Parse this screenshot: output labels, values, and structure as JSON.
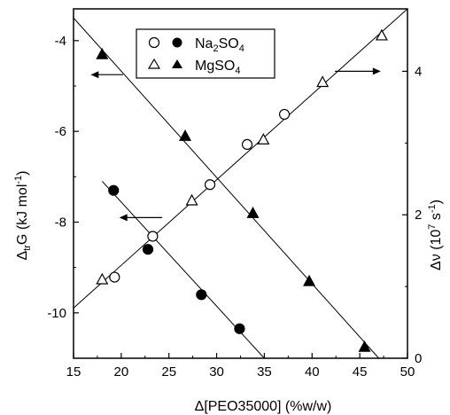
{
  "chart_data": {
    "type": "scatter",
    "xlabel": {
      "prefix": "Δ[PEO35000] (%w/w)"
    },
    "ylabel_left": {
      "main": "Δ",
      "sub": "tr",
      "rest": "G (kJ mol",
      "sup": "-1",
      "end": ")"
    },
    "ylabel_right": {
      "main": "Δν (10",
      "sup": "7",
      "mid": " s",
      "sup2": "-1",
      "end": ")"
    },
    "x_axis": {
      "min": 15,
      "max": 50,
      "ticks": [
        15,
        20,
        25,
        30,
        35,
        40,
        45,
        50
      ],
      "tick_labels": [
        "15",
        "20",
        "25",
        "30",
        "35",
        "40",
        "45",
        "50"
      ]
    },
    "y_left": {
      "min": -11,
      "max": -3.3,
      "ticks": [
        -10,
        -8,
        -6,
        -4
      ],
      "tick_labels": [
        "-10",
        "-8",
        "-6",
        "-4"
      ]
    },
    "y_right": {
      "min": 0,
      "max": 4.87,
      "ticks": [
        0,
        2,
        4
      ],
      "tick_labels": [
        "0",
        "2",
        "4"
      ]
    },
    "legend": {
      "placement": "top-left",
      "rows": [
        {
          "label_main": "Na",
          "label_sub": "2",
          "label_rest": "SO",
          "label_sub2": "4",
          "open_marker": "circle",
          "filled_marker": "circle"
        },
        {
          "label_main": "MgSO",
          "label_sub": "4",
          "label_rest": "",
          "label_sub2": "",
          "open_marker": "triangle",
          "filled_marker": "triangle"
        }
      ]
    },
    "series": [
      {
        "name": "Na2SO4",
        "marker": "circle-open",
        "axis": "right",
        "x": [
          19.3,
          23.3,
          29.3,
          33.2,
          37.1
        ],
        "y": [
          1.13,
          1.7,
          2.42,
          2.98,
          3.4
        ]
      },
      {
        "name": "MgSO4",
        "marker": "triangle-open",
        "axis": "right",
        "x": [
          18.0,
          27.4,
          34.9,
          41.1,
          47.3
        ],
        "y": [
          1.1,
          2.2,
          3.05,
          3.85,
          4.5
        ]
      },
      {
        "name": "Na2SO4",
        "marker": "circle-filled",
        "axis": "left",
        "x": [
          19.2,
          22.8,
          28.4,
          32.4
        ],
        "y": [
          -7.3,
          -8.6,
          -9.6,
          -10.35
        ]
      },
      {
        "name": "MgSO4",
        "marker": "triangle-filled",
        "axis": "left",
        "x": [
          18.0,
          26.7,
          33.8,
          39.7,
          45.5
        ],
        "y": [
          -4.3,
          -6.1,
          -7.8,
          -9.3,
          -10.75
        ]
      }
    ],
    "fit_lines": [
      {
        "axis": "right",
        "x": [
          15,
          50
        ],
        "y": [
          0.7,
          4.87
        ]
      },
      {
        "axis": "left",
        "x": [
          18,
          35
        ],
        "y": [
          -7.1,
          -11.0
        ]
      },
      {
        "axis": "left",
        "x": [
          15,
          47
        ],
        "y": [
          -3.5,
          -11.0
        ]
      }
    ],
    "arrows": [
      {
        "direction": "left",
        "axis": "left",
        "x_from": 20.2,
        "x_to": 16.8,
        "y": -4.75
      },
      {
        "direction": "left",
        "axis": "left",
        "x_from": 24.3,
        "x_to": 19.8,
        "y": -7.9
      },
      {
        "direction": "right",
        "axis": "right",
        "x_from": 42.4,
        "x_to": 47.2,
        "y": 4.0
      }
    ]
  }
}
